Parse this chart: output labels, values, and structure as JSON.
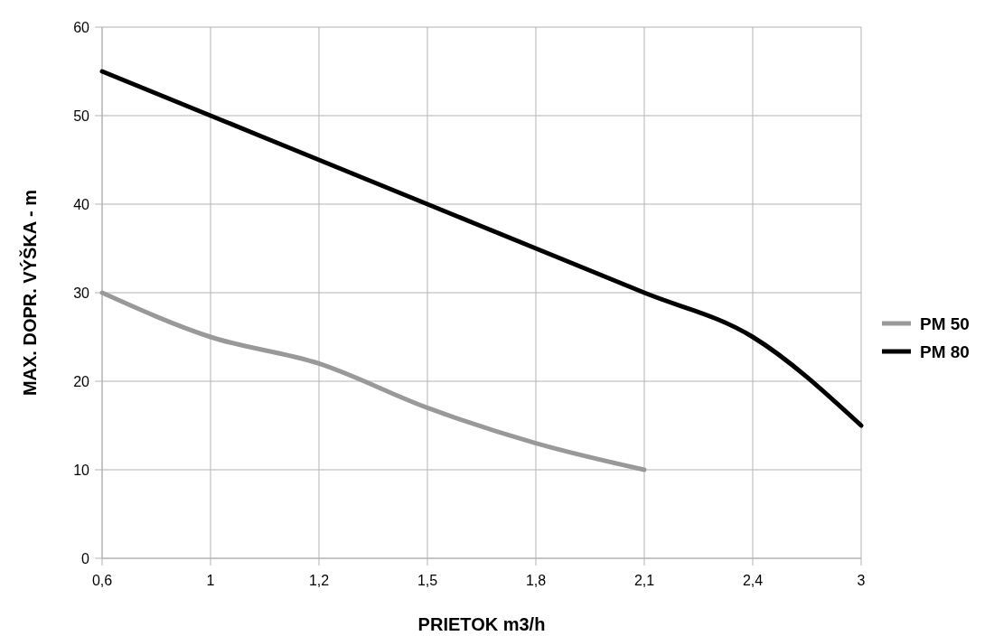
{
  "chart_data": {
    "type": "line",
    "xlabel": "PRIETOK m3/h",
    "ylabel": "MAX. DOPR. VÝŠKA - m",
    "categories": [
      "0,6",
      "1",
      "1,2",
      "1,5",
      "1,8",
      "2,1",
      "2,4",
      "3"
    ],
    "series": [
      {
        "name": "PM 50",
        "color": "#999999",
        "values": [
          30,
          25,
          22,
          17,
          13,
          10,
          null,
          null
        ]
      },
      {
        "name": "PM 80",
        "color": "#000000",
        "values": [
          55,
          50,
          45,
          40,
          35,
          30,
          25,
          15
        ]
      }
    ],
    "ylim": [
      0,
      60
    ],
    "yticks": [
      0,
      10,
      20,
      30,
      40,
      50,
      60
    ],
    "grid": true,
    "legend": "right",
    "marker": "none",
    "line_style": "solid"
  }
}
